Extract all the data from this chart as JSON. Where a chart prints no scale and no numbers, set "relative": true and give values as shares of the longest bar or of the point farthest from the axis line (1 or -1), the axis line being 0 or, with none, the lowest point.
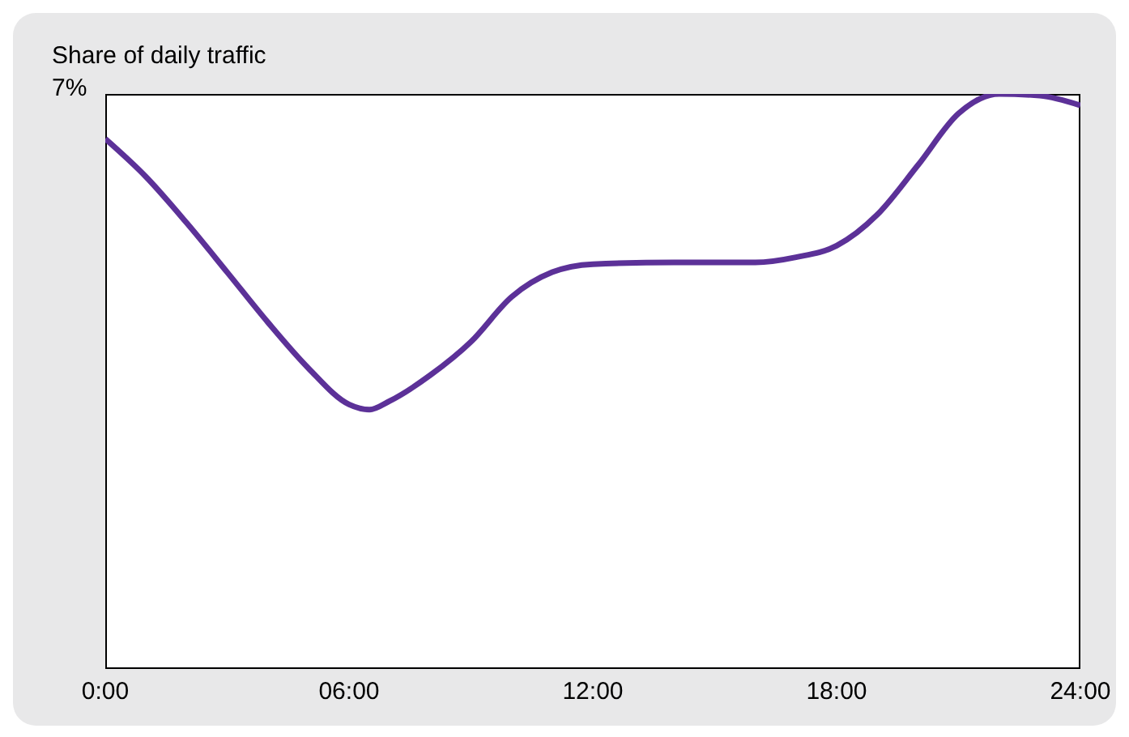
{
  "chart_data": {
    "type": "line",
    "ylabel": "Share of daily traffic",
    "annotations": [
      "7%"
    ],
    "relative": true,
    "x": [
      0,
      1,
      2,
      3,
      4,
      5,
      6,
      6.5,
      7,
      8,
      9,
      10,
      11,
      12,
      14,
      16,
      17,
      18,
      19,
      20,
      21,
      22,
      23,
      24
    ],
    "series": [
      {
        "color": "#5c3198",
        "values": [
          0.922,
          0.856,
          0.776,
          0.69,
          0.603,
          0.523,
          0.46,
          0.451,
          0.466,
          0.511,
          0.569,
          0.647,
          0.69,
          0.704,
          0.707,
          0.707,
          0.716,
          0.736,
          0.79,
          0.876,
          0.966,
          1,
          0.997,
          0.98
        ]
      }
    ],
    "xlim": [
      0,
      24
    ],
    "xticks": [
      {
        "value": 0,
        "label": "0:00"
      },
      {
        "value": 6,
        "label": "06:00"
      },
      {
        "value": 12,
        "label": "12:00"
      },
      {
        "value": 18,
        "label": "18:00"
      },
      {
        "value": 24,
        "label": "24:00"
      }
    ],
    "grid": false,
    "legend": false,
    "marker": "none",
    "line_style": "solid"
  }
}
